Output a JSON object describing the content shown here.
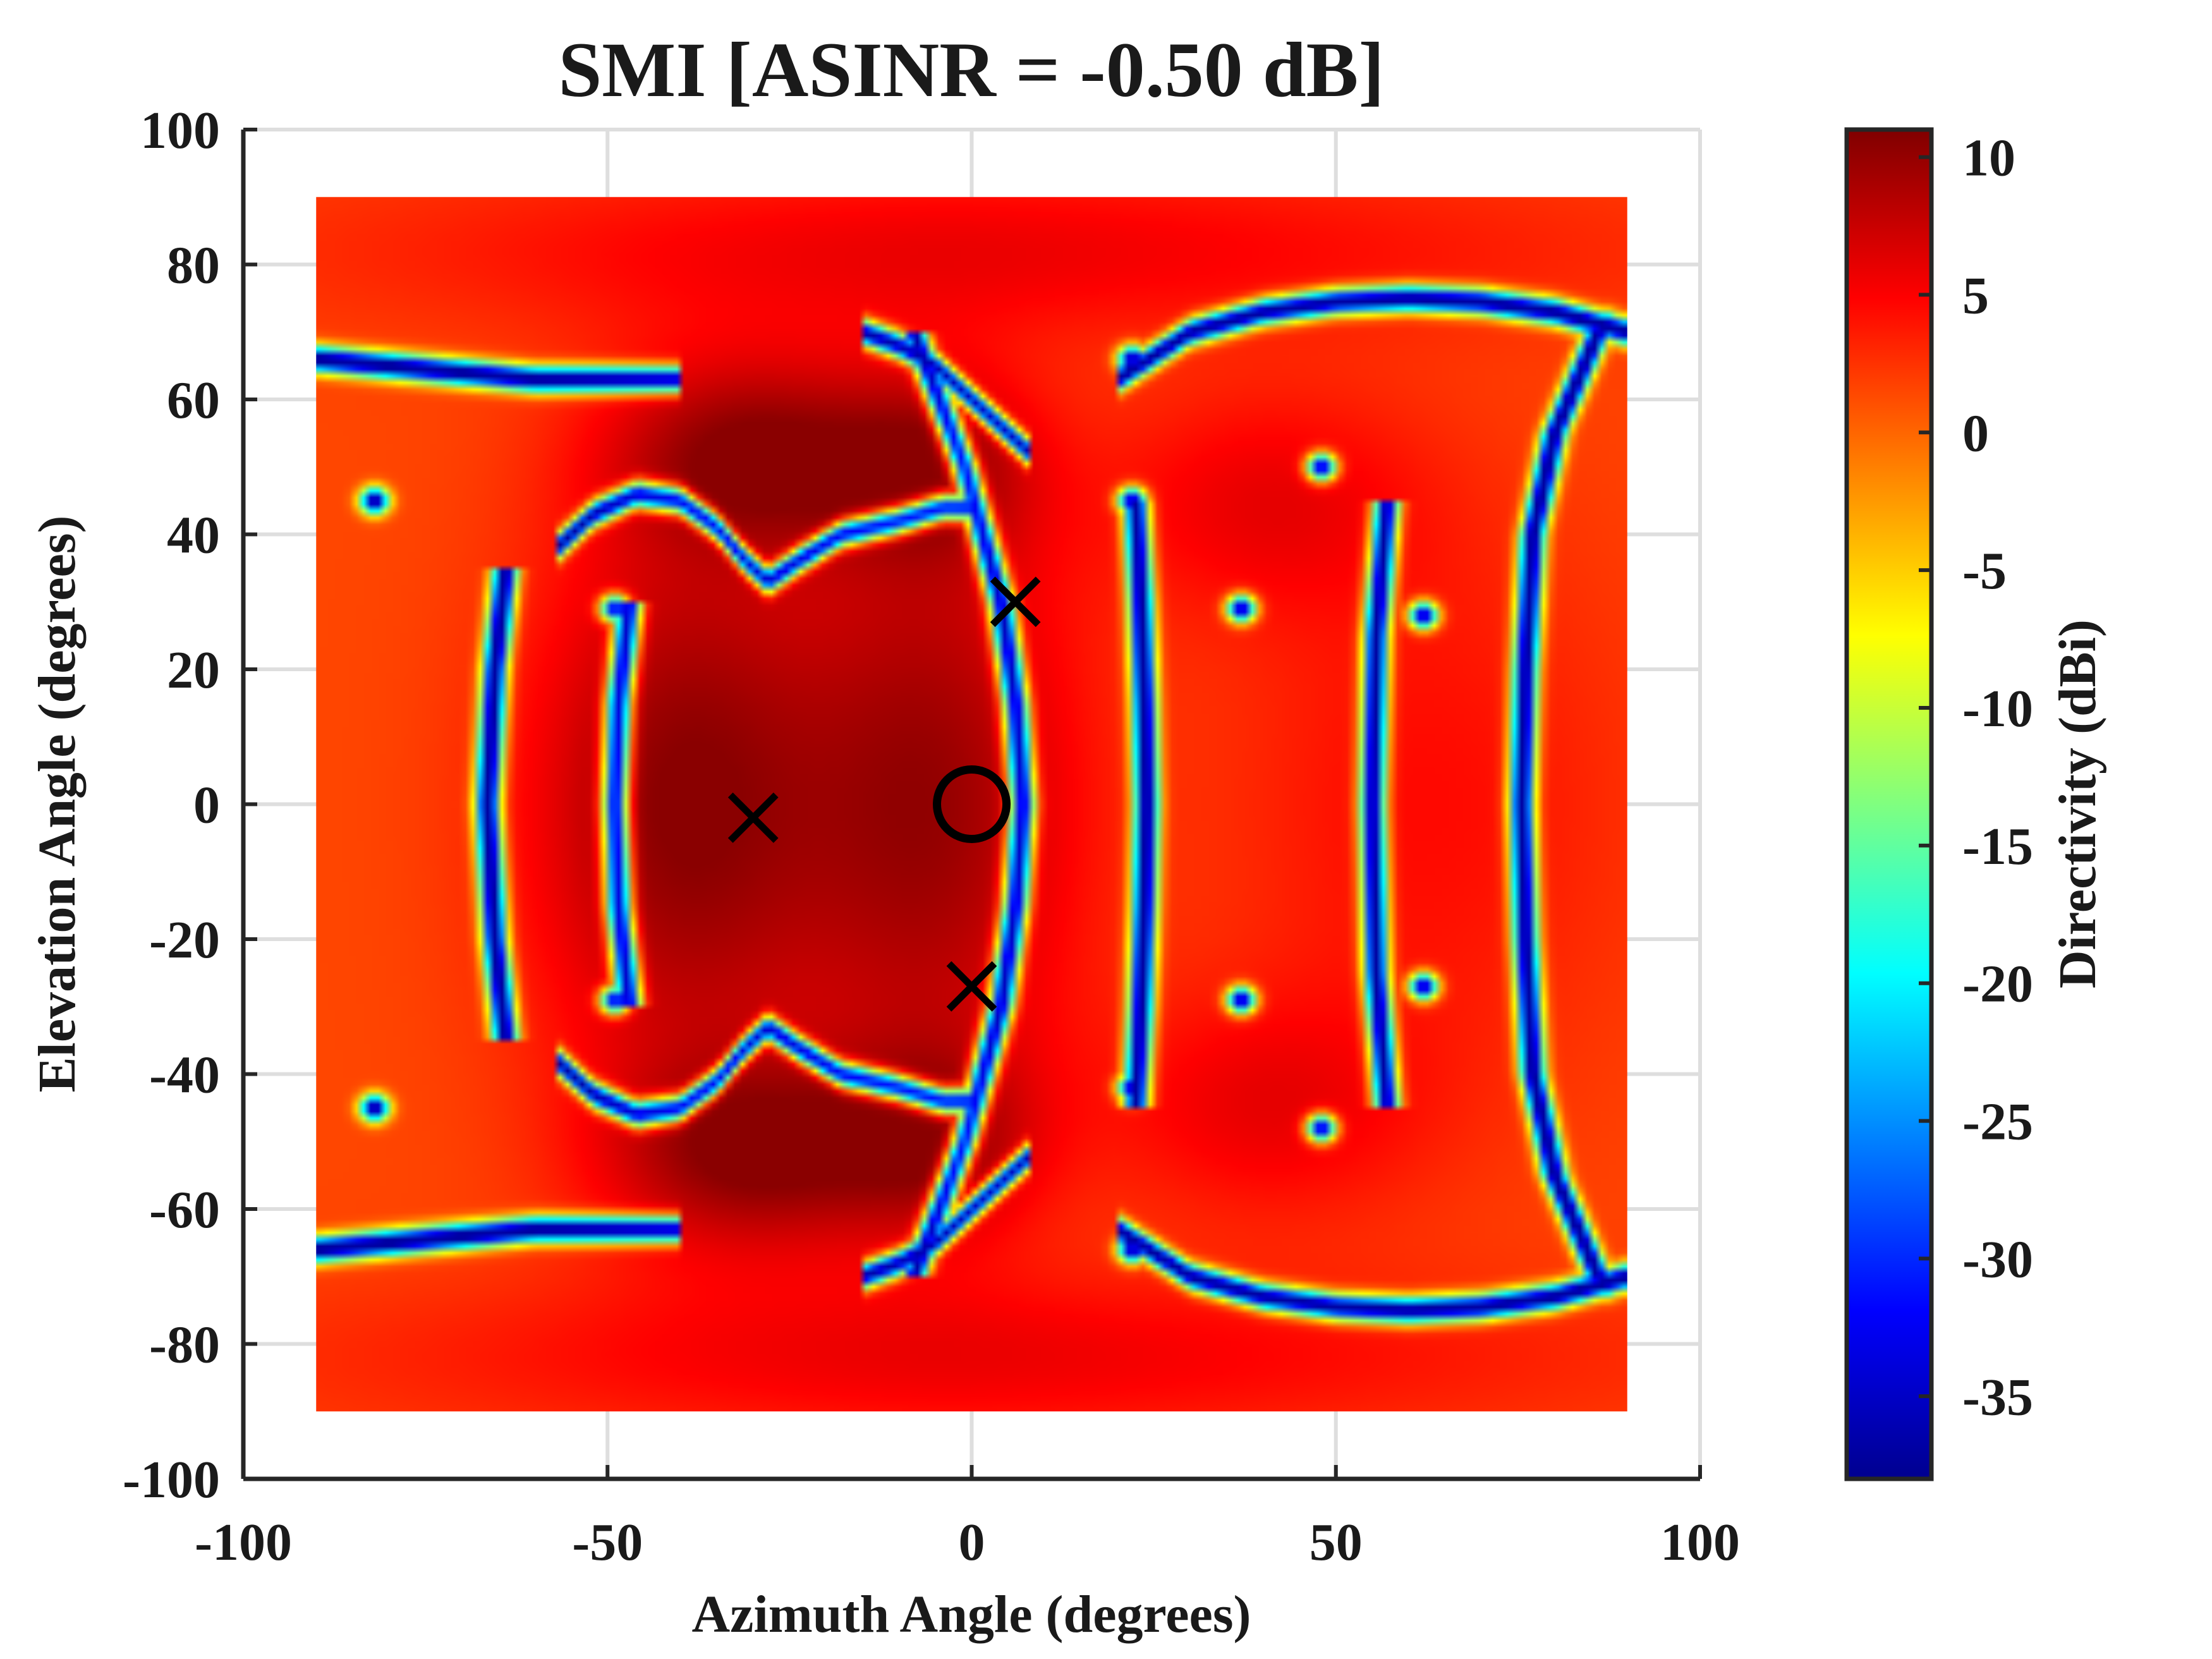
{
  "chart_data": {
    "type": "heatmap",
    "title": "SMI [ASINR = -0.50 dB]",
    "xlabel": "Azimuth Angle (degrees)",
    "ylabel": "Elevation Angle (degrees)",
    "xlim": [
      -100,
      100
    ],
    "ylim": [
      -100,
      100
    ],
    "x_ticks": [
      -100,
      -50,
      0,
      50,
      100
    ],
    "y_ticks": [
      -100,
      -80,
      -60,
      -40,
      -20,
      0,
      20,
      40,
      60,
      80,
      100
    ],
    "x_tick_labels": [
      "-100",
      "-50",
      "0",
      "50",
      "100"
    ],
    "y_tick_labels": [
      "-100",
      "-80",
      "-60",
      "-40",
      "-20",
      "0",
      "20",
      "40",
      "60",
      "80",
      "100"
    ],
    "grid": true,
    "data_extent": {
      "azimuth": [
        -90,
        90
      ],
      "elevation": [
        -90,
        90
      ]
    },
    "colormap": "jet",
    "colorbar": {
      "label": "Directivity (dBi)",
      "range": [
        -38,
        11
      ],
      "ticks": [
        10,
        5,
        0,
        -5,
        -10,
        -15,
        -20,
        -25,
        -30,
        -35
      ],
      "tick_labels": [
        "10",
        "5",
        "0",
        "-5",
        "-10",
        "-15",
        "-20",
        "-25",
        "-30",
        "-35"
      ]
    },
    "markers": [
      {
        "kind": "desired-signal",
        "symbol": "circle",
        "azimuth": 0,
        "elevation": 0
      },
      {
        "kind": "interferer",
        "symbol": "x",
        "azimuth": -30,
        "elevation": -2
      },
      {
        "kind": "interferer",
        "symbol": "x",
        "azimuth": 6,
        "elevation": 30
      },
      {
        "kind": "interferer",
        "symbol": "x",
        "azimuth": 0,
        "elevation": -27
      }
    ],
    "null_curves_elevation_of_azimuth": [
      {
        "az": [
          -57,
          -52,
          -46,
          -40,
          -35,
          -31,
          -28,
          -24,
          -18,
          -10,
          -4,
          0
        ],
        "el": [
          38,
          43,
          46,
          45,
          41,
          36,
          33,
          36,
          40,
          42,
          44,
          44
        ]
      },
      {
        "az": [
          -57,
          -52,
          -46,
          -40,
          -35,
          -31,
          -28,
          -24,
          -18,
          -10,
          -4,
          0
        ],
        "el": [
          -38,
          -43,
          -46,
          -45,
          -41,
          -36,
          -33,
          -36,
          -40,
          -42,
          -44,
          -44
        ]
      },
      {
        "az": [
          -90,
          -80,
          -70,
          -60,
          -50,
          -40
        ],
        "el": [
          66,
          65,
          64,
          63,
          63,
          63
        ]
      },
      {
        "az": [
          -90,
          -80,
          -70,
          -60,
          -50,
          -40
        ],
        "el": [
          -66,
          -65,
          -64,
          -63,
          -63,
          -63
        ]
      },
      {
        "az": [
          20,
          30,
          40,
          50,
          60,
          70,
          80,
          90
        ],
        "el": [
          63,
          70,
          73,
          74.5,
          75,
          74.5,
          73,
          70
        ]
      },
      {
        "az": [
          20,
          30,
          40,
          50,
          60,
          70,
          80,
          90
        ],
        "el": [
          -63,
          -70,
          -73,
          -74.5,
          -75,
          -74.5,
          -73,
          -70
        ]
      },
      {
        "az": [
          -15,
          -10,
          -5,
          0,
          5,
          8
        ],
        "el": [
          70,
          68,
          65,
          60,
          55,
          52
        ]
      },
      {
        "az": [
          -15,
          -10,
          -5,
          0,
          5,
          8
        ],
        "el": [
          -70,
          -68,
          -65,
          -60,
          -55,
          -52
        ]
      }
    ],
    "null_curves_azimuth_of_elevation": [
      {
        "el": [
          -70,
          -50,
          -30,
          -15,
          0,
          15,
          30,
          50,
          70
        ],
        "az": [
          -8,
          -1,
          4,
          6,
          7,
          6,
          4,
          -1,
          -8
        ]
      },
      {
        "el": [
          -45,
          -30,
          -15,
          0,
          15,
          30,
          45
        ],
        "az": [
          22.5,
          23.2,
          23.7,
          24,
          23.7,
          23.2,
          22.5
        ]
      },
      {
        "el": [
          -35,
          -20,
          -10,
          0,
          10,
          20,
          35
        ],
        "az": [
          -64,
          -65.5,
          -66,
          -66.5,
          -66,
          -65.5,
          -64
        ]
      },
      {
        "el": [
          -30,
          -15,
          0,
          15,
          30
        ],
        "az": [
          -47,
          -48.5,
          -49,
          -48.5,
          -47
        ]
      },
      {
        "el": [
          -70,
          -55,
          -40,
          -20,
          0,
          20,
          40,
          55,
          70
        ],
        "az": [
          86,
          80,
          77,
          76,
          75.5,
          76,
          77,
          80,
          86
        ]
      },
      {
        "el": [
          -45,
          -25,
          0,
          25,
          45
        ],
        "az": [
          57,
          55.5,
          55,
          55.5,
          57
        ]
      }
    ],
    "null_spots": [
      {
        "azimuth": -82,
        "elevation": 45
      },
      {
        "azimuth": -82,
        "elevation": -45
      },
      {
        "azimuth": -49,
        "elevation": 29
      },
      {
        "azimuth": -49,
        "elevation": -29
      },
      {
        "azimuth": 37,
        "elevation": 29
      },
      {
        "azimuth": 37,
        "elevation": -29
      },
      {
        "azimuth": 62,
        "elevation": 28
      },
      {
        "azimuth": 62,
        "elevation": -27
      },
      {
        "azimuth": 48,
        "elevation": 50
      },
      {
        "azimuth": 48,
        "elevation": -48
      },
      {
        "azimuth": 22,
        "elevation": 66
      },
      {
        "azimuth": 22,
        "elevation": -66
      },
      {
        "azimuth": 22,
        "elevation": 45
      },
      {
        "azimuth": 22,
        "elevation": -42
      },
      {
        "azimuth": 87,
        "elevation": 71
      },
      {
        "azimuth": 87,
        "elevation": -71
      }
    ]
  }
}
